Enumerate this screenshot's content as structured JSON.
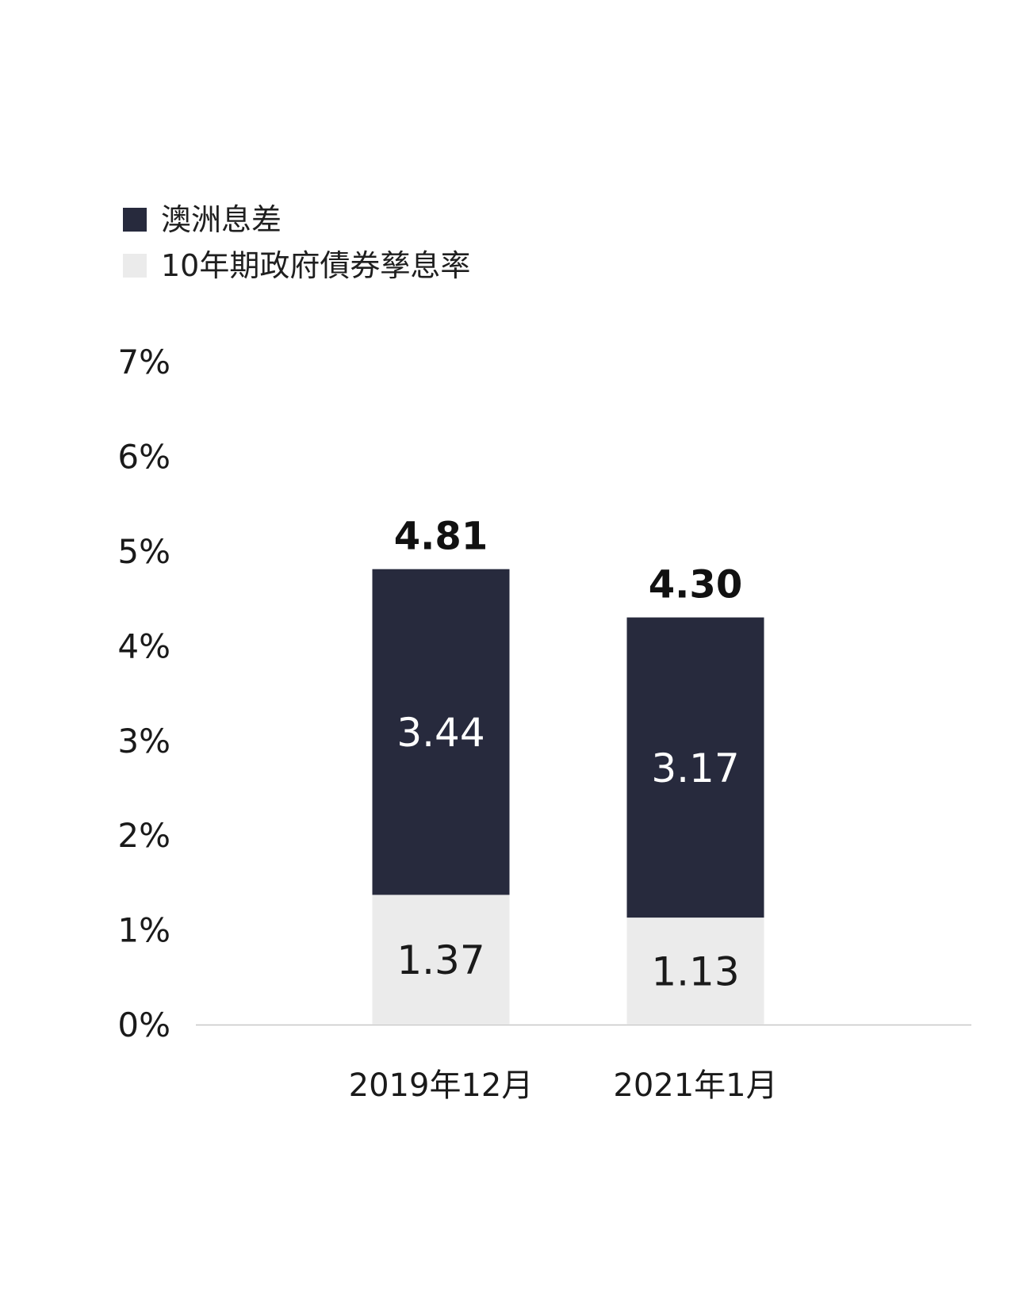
{
  "chart_data": {
    "type": "bar",
    "stacked": true,
    "categories": [
      "2019年12月",
      "2021年1月"
    ],
    "series": [
      {
        "name": "10年期政府債券孳息率",
        "values": [
          1.37,
          1.13
        ],
        "color": "#ebebeb",
        "label_color": "#1a1a1a"
      },
      {
        "name": "澳洲息差",
        "values": [
          3.44,
          3.17
        ],
        "color": "#272a3d",
        "label_color": "#ffffff"
      }
    ],
    "totals": [
      "4.81",
      "4.30"
    ],
    "segment_labels": [
      [
        "1.37",
        "1.13"
      ],
      [
        "3.44",
        "3.17"
      ]
    ],
    "yticks": [
      "0%",
      "1%",
      "2%",
      "3%",
      "4%",
      "5%",
      "6%",
      "7%"
    ],
    "ylim": [
      0,
      7
    ],
    "grid": false,
    "legend_position": "top-left"
  },
  "legend": [
    {
      "label": "澳洲息差",
      "color": "#272a3d"
    },
    {
      "label": "10年期政府債券孳息率",
      "color": "#ebebeb"
    }
  ]
}
